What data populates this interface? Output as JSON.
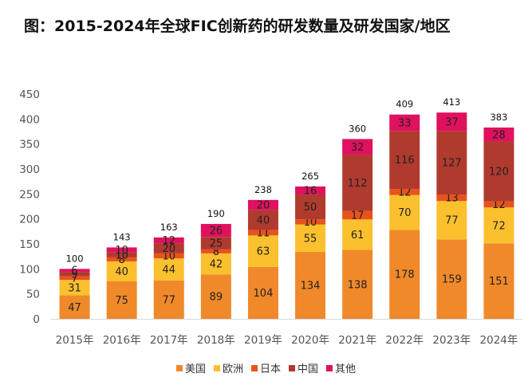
{
  "chart_data": {
    "type": "bar",
    "stacked": true,
    "title": "图：2015-2024年全球FIC创新药的研发数量及研发国家/地区",
    "categories": [
      "2015年",
      "2016年",
      "2017年",
      "2018年",
      "2019年",
      "2020年",
      "2021年",
      "2022年",
      "2023年",
      "2024年"
    ],
    "series": [
      {
        "name": "美国",
        "color": "#f0892a",
        "values": [
          47,
          75,
          77,
          89,
          104,
          134,
          138,
          178,
          159,
          151
        ]
      },
      {
        "name": "欧洲",
        "color": "#fbc02d",
        "values": [
          31,
          40,
          44,
          42,
          63,
          55,
          61,
          70,
          77,
          72
        ]
      },
      {
        "name": "日本",
        "color": "#e8531c",
        "values": [
          7,
          8,
          10,
          8,
          11,
          10,
          17,
          12,
          13,
          12
        ]
      },
      {
        "name": "中国",
        "color": "#b03a2e",
        "values": [
          9,
          10,
          20,
          25,
          40,
          50,
          112,
          116,
          127,
          120
        ]
      },
      {
        "name": "其他",
        "color": "#e0115f",
        "values": [
          6,
          10,
          12,
          26,
          20,
          16,
          32,
          33,
          37,
          28
        ]
      }
    ],
    "totals": [
      "100",
      "143",
      "163",
      "190",
      "238",
      "265",
      "360",
      "409",
      "413",
      "383"
    ],
    "yticks": [
      "0",
      "50",
      "100",
      "150",
      "200",
      "250",
      "300",
      "350",
      "400",
      "450"
    ],
    "ylim": [
      0,
      450
    ],
    "legend_position": "bottom",
    "grid": false
  }
}
